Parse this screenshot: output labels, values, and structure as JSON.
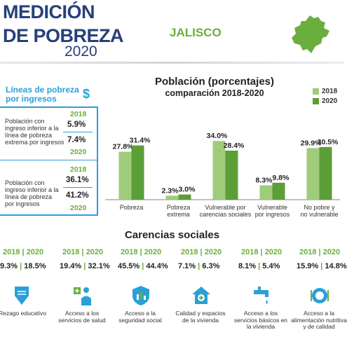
{
  "header": {
    "title_line1": "MEDICIÓN",
    "title_line2": "DE POBREZA",
    "year": "2020",
    "state": "JALISCO"
  },
  "poverty_lines": {
    "title": "Líneas de pobreza por ingresos",
    "icon": "dollar-icon",
    "items": [
      {
        "desc": "Población con ingreso inferior a la línea de pobreza extrema por ingresos",
        "year_a": "2018",
        "value_a": "5.9%",
        "value_b": "7.4%",
        "year_b": "2020"
      },
      {
        "desc": "Población con ingreso inferior a la línea de pobreza por ingresos",
        "year_a": "2018",
        "value_a": "36.1%",
        "value_b": "41.2%",
        "year_b": "2020"
      }
    ]
  },
  "chart_data": {
    "type": "bar",
    "title": "Población (porcentajes)",
    "subtitle": "comparación 2018-2020",
    "categories": [
      "Pobreza",
      "Pobreza extrema",
      "Vulnerable por carencias sociales",
      "Vulnerable por ingresos",
      "No pobre y no vulnerable"
    ],
    "series": [
      {
        "name": "2018",
        "values": [
          27.8,
          2.3,
          34.0,
          8.3,
          29.9
        ],
        "labels": [
          "27.8%",
          "2.3%",
          "34.0%",
          "8.3%",
          "29.9%"
        ],
        "color": "#9fcc7a"
      },
      {
        "name": "2020",
        "values": [
          31.4,
          3.0,
          28.4,
          9.8,
          30.5
        ],
        "labels": [
          "31.4%",
          "3.0%",
          "28.4%",
          "9.8%",
          "30.5%"
        ],
        "color": "#5c9e38"
      }
    ],
    "ylim": [
      0,
      40
    ],
    "legend": "top-right",
    "grid": false
  },
  "carencias": {
    "title": "Carencias sociales",
    "year_a": "2018",
    "year_b": "2020",
    "items": [
      {
        "a": "9.3%",
        "b": "18.5%",
        "label": "Rezago educativo",
        "icon": "education-icon"
      },
      {
        "a": "19.4%",
        "b": "32.1%",
        "label": "Acceso a los servicios de salud",
        "icon": "health-icon"
      },
      {
        "a": "45.5%",
        "b": "44.4%",
        "label": "Acceso a la seguridad social",
        "icon": "social-security-icon"
      },
      {
        "a": "7.1%",
        "b": "6.3%",
        "label": "Calidad y espacios de la vivienda",
        "icon": "housing-icon"
      },
      {
        "a": "8.1%",
        "b": "5.4%",
        "label": "Acceso a los servicios básicos en la vivienda",
        "icon": "water-tap-icon"
      },
      {
        "a": "15.9%",
        "b": "14.8%",
        "label": "Acceso a la alimentación nutritiva y de calidad",
        "icon": "food-icon"
      }
    ]
  },
  "colors": {
    "brand_blue": "#26407a",
    "green": "#6aae3e",
    "panel_blue": "#2aa0d8"
  }
}
